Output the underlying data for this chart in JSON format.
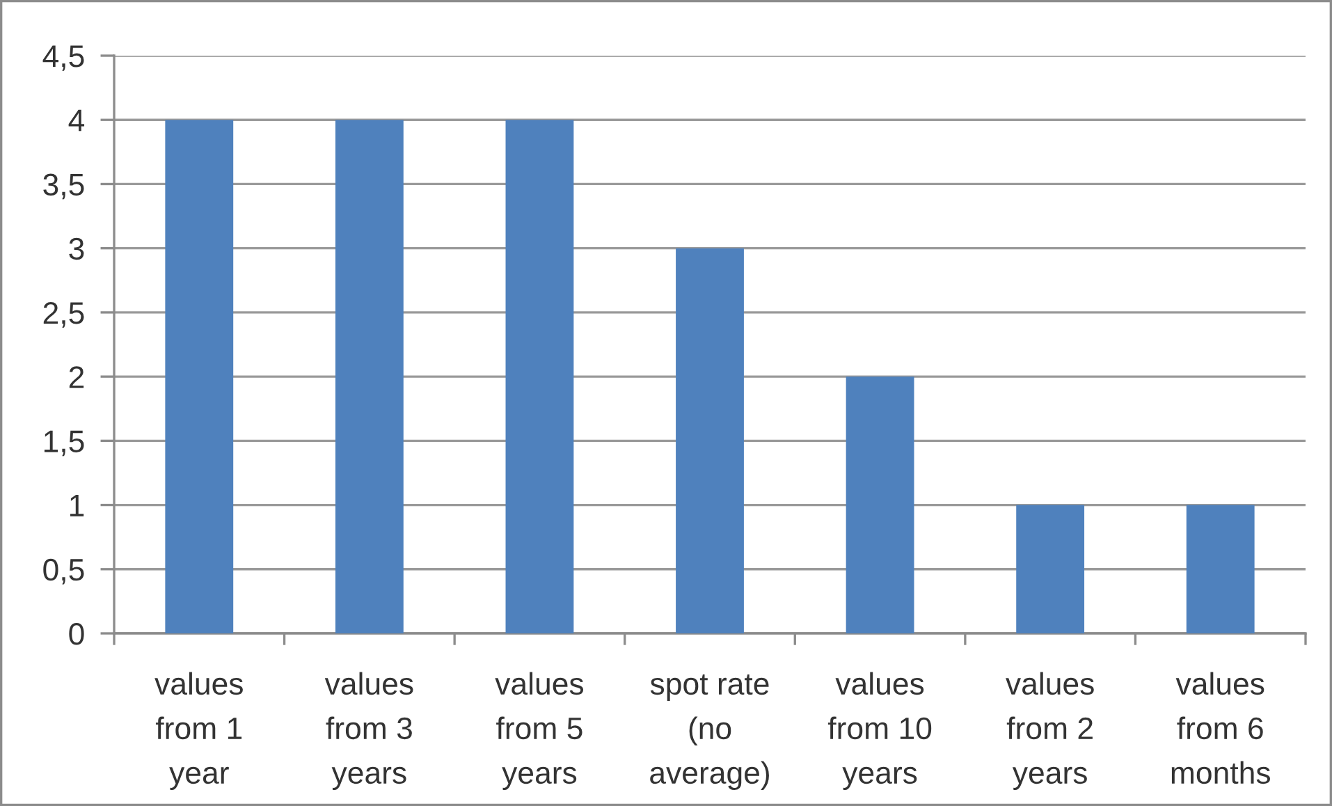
{
  "chart_data": {
    "type": "bar",
    "categories": [
      "values\nfrom 1\nyear",
      "values\nfrom 3\nyears",
      "values\nfrom 5\nyears",
      "spot rate\n(no\naverage)",
      "values\nfrom 10\nyears",
      "values\nfrom 2\nyears",
      "values\nfrom 6\nmonths"
    ],
    "values": [
      4,
      4,
      4,
      3,
      2,
      1,
      1
    ],
    "color": "#4f81bd",
    "ylim": [
      0,
      4.5
    ],
    "yticks": [
      0,
      {
        "value": 0.5,
        "label": "0,5"
      },
      1,
      {
        "value": 1.5,
        "label": "1,5"
      },
      2,
      {
        "value": 2.5,
        "label": "2,5"
      },
      3,
      {
        "value": 3.5,
        "label": "3,5"
      },
      4,
      {
        "value": 4.5,
        "label": "4,5"
      }
    ],
    "grid": "y",
    "legend": false
  }
}
